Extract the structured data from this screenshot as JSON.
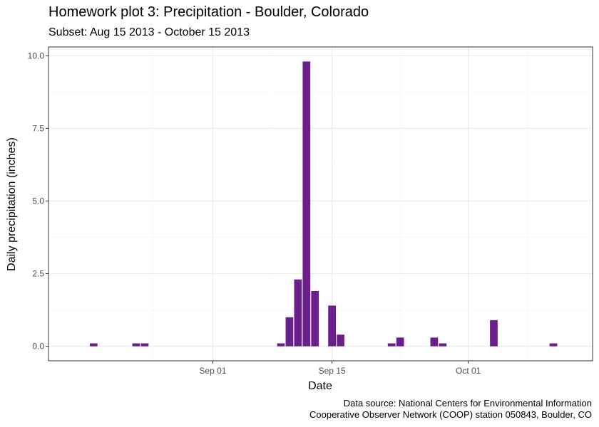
{
  "chart_data": {
    "type": "bar",
    "title": "Homework plot 3: Precipitation - Boulder, Colorado",
    "subtitle": "Subset: Aug 15 2013 - October 15 2013",
    "xlabel": "Date",
    "ylabel": "Daily precipitation (inches)",
    "caption": [
      "Data source:  National Centers for Environmental Information",
      "Cooperative Observer Network (COOP) station 050843,  Boulder, CO"
    ],
    "x_range": [
      "2013-08-15",
      "2013-10-15"
    ],
    "ylim": [
      -0.5,
      10.3
    ],
    "y_ticks": [
      0,
      2.5,
      5,
      7.5,
      10
    ],
    "y_tick_labels": [
      "0.0",
      "2.5",
      "5.0",
      "7.5",
      "10.0"
    ],
    "x_ticks": [
      "2013-09-01",
      "2013-09-15",
      "2013-10-01"
    ],
    "x_tick_labels": [
      "Sep 01",
      "Sep 15",
      "Oct 01"
    ],
    "grid": true,
    "bar_color": "#6a1f8a",
    "x": [
      "2013-08-18",
      "2013-08-23",
      "2013-08-24",
      "2013-09-09",
      "2013-09-10",
      "2013-09-11",
      "2013-09-12",
      "2013-09-13",
      "2013-09-15",
      "2013-09-16",
      "2013-09-22",
      "2013-09-23",
      "2013-09-27",
      "2013-09-28",
      "2013-10-04",
      "2013-10-11"
    ],
    "values": [
      0.1,
      0.1,
      0.1,
      0.1,
      1.0,
      2.3,
      9.8,
      1.9,
      1.4,
      0.4,
      0.1,
      0.3,
      0.3,
      0.1,
      0.9,
      0.1
    ]
  }
}
